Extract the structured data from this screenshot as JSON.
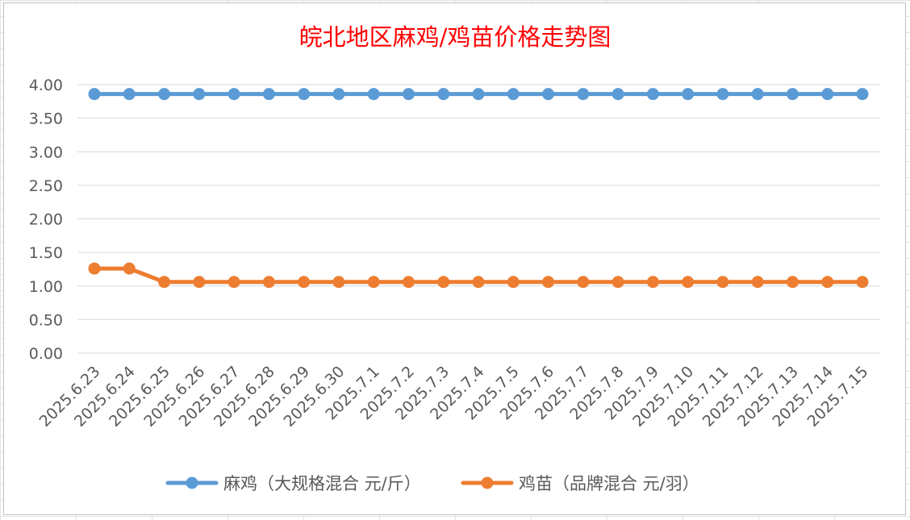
{
  "chart_data": {
    "type": "line",
    "title": "皖北地区麻鸡/鸡苗价格走势图",
    "xlabel": "",
    "ylabel": "",
    "categories": [
      "2025.6.23",
      "2025.6.24",
      "2025.6.25",
      "2025.6.26",
      "2025.6.27",
      "2025.6.28",
      "2025.6.29",
      "2025.6.30",
      "2025.7.1",
      "2025.7.2",
      "2025.7.3",
      "2025.7.4",
      "2025.7.5",
      "2025.7.6",
      "2025.7.7",
      "2025.7.8",
      "2025.7.9",
      "2025.7.10",
      "2025.7.11",
      "2025.7.12",
      "2025.7.13",
      "2025.7.14",
      "2025.7.15"
    ],
    "y_ticks": [
      "0.00",
      "0.50",
      "1.00",
      "1.50",
      "2.00",
      "2.50",
      "3.00",
      "3.50",
      "4.00"
    ],
    "ylim": [
      0,
      4
    ],
    "grid": true,
    "legend_position": "bottom",
    "series": [
      {
        "name": "麻鸡（大规格混合 元/斤）",
        "color": "#5b9bd5",
        "values": [
          3.86,
          3.86,
          3.86,
          3.86,
          3.86,
          3.86,
          3.86,
          3.86,
          3.86,
          3.86,
          3.86,
          3.86,
          3.86,
          3.86,
          3.86,
          3.86,
          3.86,
          3.86,
          3.86,
          3.86,
          3.86,
          3.86,
          3.86
        ]
      },
      {
        "name": "鸡苗（品牌混合 元/羽）",
        "color": "#ed7d31",
        "values": [
          1.26,
          1.26,
          1.06,
          1.06,
          1.06,
          1.06,
          1.06,
          1.06,
          1.06,
          1.06,
          1.06,
          1.06,
          1.06,
          1.06,
          1.06,
          1.06,
          1.06,
          1.06,
          1.06,
          1.06,
          1.06,
          1.06,
          1.06
        ]
      }
    ]
  }
}
